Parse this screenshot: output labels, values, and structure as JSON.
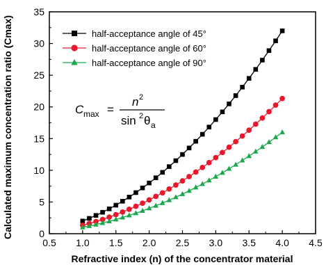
{
  "chart_data": {
    "type": "line",
    "xlabel": "Refractive index (n) of the concentrator material",
    "ylabel": "Calculated maximum concentration ratio (Cmax)",
    "xlim": [
      0.5,
      4.5
    ],
    "ylim": [
      0,
      35
    ],
    "xticks": [
      "0.5",
      "1.0",
      "1.5",
      "2.0",
      "2.5",
      "3.0",
      "3.5",
      "4.0",
      "4.5"
    ],
    "yticks": [
      "0",
      "5",
      "10",
      "15",
      "20",
      "25",
      "30",
      "35"
    ],
    "grid": false,
    "legend": "top-left",
    "x": [
      1.0,
      1.1,
      1.2,
      1.3,
      1.4,
      1.5,
      1.6,
      1.7,
      1.8,
      1.9,
      2.0,
      2.1,
      2.2,
      2.3,
      2.4,
      2.5,
      2.6,
      2.7,
      2.8,
      2.9,
      3.0,
      3.1,
      3.2,
      3.3,
      3.4,
      3.5,
      3.6,
      3.7,
      3.8,
      3.9,
      4.0
    ],
    "series": [
      {
        "name": "half-acceptance angle of 45°",
        "color": "#000000",
        "marker": "square",
        "values": [
          2.0,
          2.42,
          2.88,
          3.38,
          3.92,
          4.5,
          5.12,
          5.78,
          6.48,
          7.22,
          8.0,
          8.82,
          9.68,
          10.58,
          11.52,
          12.5,
          13.52,
          14.58,
          15.68,
          16.82,
          18.0,
          19.22,
          20.48,
          21.78,
          23.12,
          24.5,
          25.92,
          27.38,
          28.88,
          30.42,
          32.0
        ]
      },
      {
        "name": "half-acceptance angle of 60°",
        "color": "#e8192c",
        "marker": "circle",
        "values": [
          1.33,
          1.61,
          1.92,
          2.25,
          2.61,
          3.0,
          3.41,
          3.85,
          4.32,
          4.81,
          5.33,
          5.88,
          6.45,
          7.05,
          7.68,
          8.33,
          9.01,
          9.72,
          10.45,
          11.21,
          12.0,
          12.81,
          13.65,
          14.52,
          15.41,
          16.33,
          17.28,
          18.25,
          19.25,
          20.28,
          21.33
        ]
      },
      {
        "name": "half-acceptance angle of 90°",
        "color": "#19a84a",
        "marker": "triangle",
        "values": [
          1.0,
          1.21,
          1.44,
          1.69,
          1.96,
          2.25,
          2.56,
          2.89,
          3.24,
          3.61,
          4.0,
          4.41,
          4.84,
          5.29,
          5.76,
          6.25,
          6.76,
          7.29,
          7.84,
          8.41,
          9.0,
          9.61,
          10.24,
          10.89,
          11.56,
          12.25,
          12.96,
          13.69,
          14.44,
          15.21,
          16.0
        ]
      }
    ],
    "annotation": {
      "lhs": "C",
      "lhs_sub": "max",
      "eq": "=",
      "numerator": "n",
      "numerator_sup": "2",
      "denominator": "sin",
      "denominator_sup": "2",
      "denominator_theta": "θ",
      "denominator_sub": "a"
    }
  }
}
